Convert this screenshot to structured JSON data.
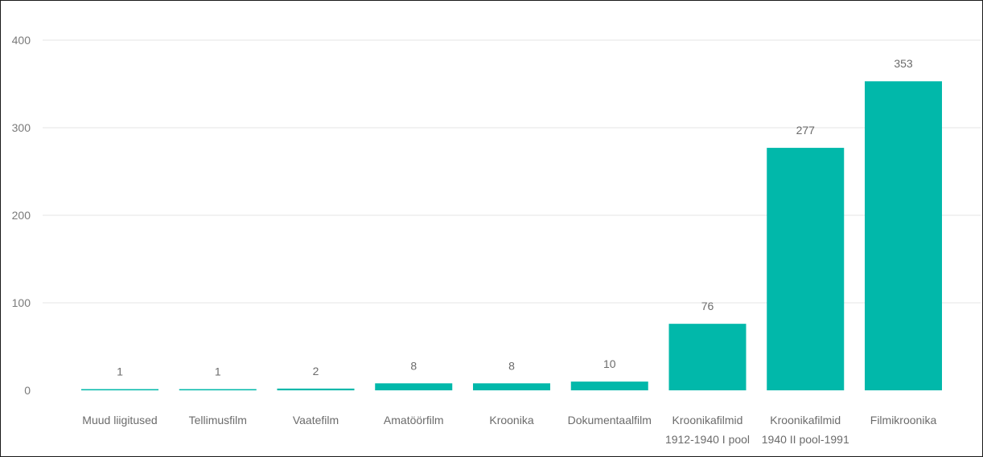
{
  "chart_data": {
    "type": "bar",
    "categories": [
      [
        "Muud liigitused"
      ],
      [
        "Tellimusfilm"
      ],
      [
        "Vaatefilm"
      ],
      [
        "Amatöörfilm"
      ],
      [
        "Kroonika"
      ],
      [
        "Dokumentaalfilm"
      ],
      [
        "Kroonikafilmid",
        "1912-1940 I pool"
      ],
      [
        "Kroonikafilmid",
        "1940 II pool-1991"
      ],
      [
        "Filmikroonika"
      ]
    ],
    "values": [
      1,
      1,
      2,
      8,
      8,
      10,
      76,
      277,
      353
    ],
    "ylim": [
      0,
      400
    ],
    "yticks": [
      0,
      100,
      200,
      300,
      400
    ],
    "grid": true,
    "data_labels": true,
    "color": "#01b8aa"
  }
}
